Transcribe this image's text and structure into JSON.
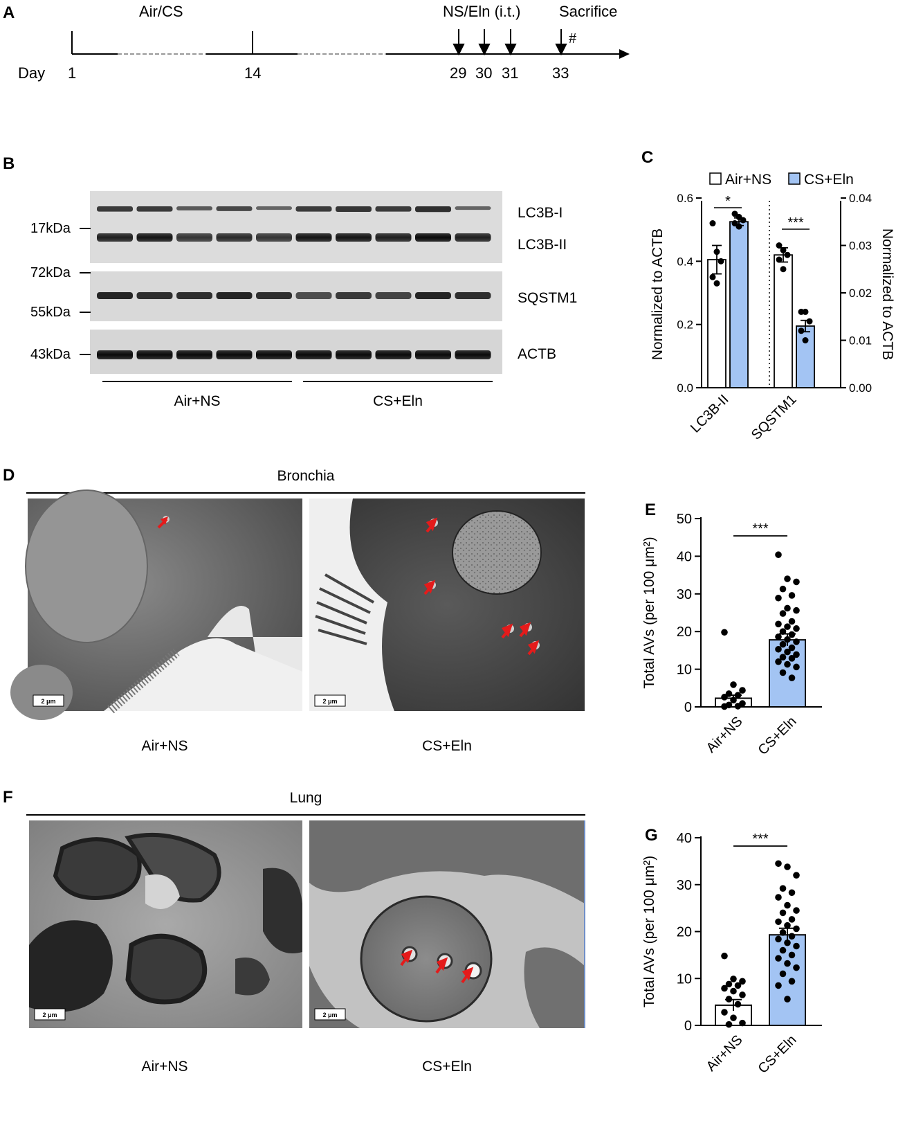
{
  "panels": {
    "A": "A",
    "B": "B",
    "C": "C",
    "D": "D",
    "E": "E",
    "F": "F",
    "G": "G"
  },
  "timeline": {
    "exposure_label": "Air/CS",
    "treatment_label": "NS/Eln (i.t.)",
    "sacrifice_label": "Sacrifice",
    "hash": "#",
    "day_label": "Day",
    "days": [
      "1",
      "14",
      "29",
      "30",
      "31",
      "33"
    ]
  },
  "blot": {
    "markers": [
      "17kDa",
      "72kDa",
      "55kDa",
      "43kDa"
    ],
    "bands": [
      "LC3B-I",
      "LC3B-II",
      "SQSTM1",
      "ACTB"
    ],
    "groups": [
      "Air+NS",
      "CS+Eln"
    ]
  },
  "panel_c": {
    "legend": [
      "Air+NS",
      "CS+Eln"
    ],
    "left_ylabel": "Normalized to ACTB",
    "right_ylabel": "Normalized to ACTB",
    "left_ticks": [
      "0.0",
      "0.2",
      "0.4",
      "0.6"
    ],
    "right_ticks": [
      "0.00",
      "0.01",
      "0.02",
      "0.03",
      "0.04"
    ],
    "xlabels": [
      "LC3B-II",
      "SQSTM1"
    ],
    "sig": [
      "*",
      "***"
    ]
  },
  "panel_d": {
    "title": "Bronchia",
    "captions": [
      "Air+NS",
      "CS+Eln"
    ],
    "scale": "2 μm"
  },
  "panel_f": {
    "title": "Lung",
    "captions": [
      "Air+NS",
      "CS+Eln"
    ],
    "scale": "2 μm"
  },
  "chart_data": [
    {
      "type": "bar",
      "panel": "C",
      "categories": [
        "LC3B-II",
        "SQSTM1"
      ],
      "series": [
        {
          "name": "Air+NS",
          "values": [
            0.405,
            0.028
          ],
          "errors": [
            0.045,
            0.0015
          ],
          "points": [
            [
              0.52,
              0.43,
              0.4,
              0.35,
              0.33
            ],
            [
              0.03,
              0.029,
              0.028,
              0.027,
              0.025
            ]
          ]
        },
        {
          "name": "CS+Eln",
          "values": [
            0.525,
            0.013
          ],
          "errors": [
            0.012,
            0.0012
          ],
          "points": [
            [
              0.55,
              0.54,
              0.53,
              0.52,
              0.51
            ],
            [
              0.016,
              0.016,
              0.014,
              0.012,
              0.01
            ]
          ]
        }
      ],
      "ylabel": "Normalized to ACTB",
      "ylim_left": [
        0,
        0.6
      ],
      "ylim_right": [
        0,
        0.04
      ],
      "axis": [
        "left",
        "right"
      ],
      "colors": {
        "Air+NS": "#ffffff",
        "CS+Eln": "#a3c4f3"
      }
    },
    {
      "type": "bar",
      "panel": "E",
      "categories": [
        "Air+NS",
        "CS+Eln"
      ],
      "values": [
        2.3,
        17.8
      ],
      "errors": [
        0.8,
        1.6
      ],
      "ylabel": "Total AVs (per 100 μm²)",
      "ylim": [
        0,
        50
      ],
      "yticks": [
        0,
        10,
        20,
        30,
        40,
        50
      ],
      "sig": "***",
      "points": [
        [
          19.8,
          5.9,
          4.4,
          3.5,
          3.1,
          2.6,
          1.8,
          0.9,
          0.5,
          0.2,
          0.1
        ],
        [
          40.4,
          34.0,
          33.2,
          31.3,
          29.6,
          28.9,
          26.2,
          25.6,
          24.8,
          22.7,
          22.0,
          21.3,
          20.8,
          20.0,
          19.2,
          18.6,
          17.9,
          17.3,
          16.6,
          15.7,
          15.3,
          14.6,
          13.9,
          13.2,
          12.9,
          12.0,
          11.3,
          10.6,
          9.1,
          7.7
        ]
      ],
      "colors": {
        "Air+NS": "#ffffff",
        "CS+Eln": "#a3c4f3"
      }
    },
    {
      "type": "bar",
      "panel": "G",
      "categories": [
        "Air+NS",
        "CS+Eln"
      ],
      "values": [
        4.3,
        19.3
      ],
      "errors": [
        1.2,
        1.4
      ],
      "ylabel": "Total AVs (per 100 μm²)",
      "ylim": [
        0,
        40
      ],
      "yticks": [
        0,
        10,
        20,
        30,
        40
      ],
      "sig": "***",
      "points": [
        [
          14.8,
          9.9,
          9.4,
          8.8,
          8.5,
          7.9,
          7.3,
          6.5,
          5.6,
          4.5,
          2.8,
          1.6,
          0.5,
          0.2
        ],
        [
          34.5,
          33.8,
          32.0,
          29.2,
          28.3,
          27.3,
          25.6,
          24.5,
          24.0,
          22.6,
          22.1,
          21.3,
          20.6,
          19.8,
          19.0,
          18.4,
          17.6,
          16.9,
          16.0,
          15.0,
          14.3,
          13.2,
          12.3,
          11.0,
          9.4,
          8.5,
          5.6
        ]
      ],
      "colors": {
        "Air+NS": "#ffffff",
        "CS+Eln": "#a3c4f3"
      }
    }
  ]
}
